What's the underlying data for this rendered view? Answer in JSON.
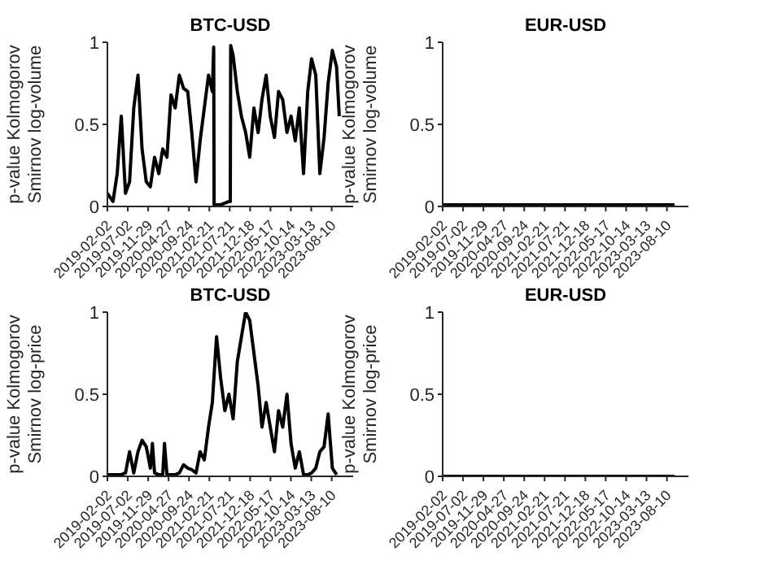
{
  "chart_data": [
    {
      "type": "line",
      "title": "BTC-USD",
      "ylabel": "p-value Kolmogorov\nSmirnov log-volume",
      "xlim": [
        "2019-02-02",
        "2024-01-15"
      ],
      "xticks": [
        "2019-02-02",
        "2019-07-02",
        "2019-11-29",
        "2020-04-27",
        "2020-09-24",
        "2021-02-21",
        "2021-07-21",
        "2021-12-18",
        "2022-05-17",
        "2022-10-14",
        "2023-03-13",
        "2023-08-10"
      ],
      "ylim": [
        0,
        1
      ],
      "yticks": [
        0,
        0.5,
        1
      ],
      "grid": false,
      "legend": false,
      "x": [
        "2019-02-02",
        "2019-03-15",
        "2019-04-15",
        "2019-05-15",
        "2019-06-15",
        "2019-07-15",
        "2019-08-15",
        "2019-09-15",
        "2019-10-15",
        "2019-11-15",
        "2019-12-15",
        "2020-01-15",
        "2020-02-15",
        "2020-03-15",
        "2020-04-15",
        "2020-05-15",
        "2020-06-15",
        "2020-07-15",
        "2020-08-15",
        "2020-09-15",
        "2020-10-15",
        "2020-11-15",
        "2020-12-15",
        "2021-01-15",
        "2021-02-15",
        "2021-03-15",
        "2021-03-25",
        "2021-03-28",
        "2021-04-15",
        "2021-05-15",
        "2021-06-15",
        "2021-07-15",
        "2021-07-25",
        "2021-07-28",
        "2021-08-15",
        "2021-09-15",
        "2021-10-15",
        "2021-11-15",
        "2021-12-15",
        "2022-01-15",
        "2022-02-15",
        "2022-03-15",
        "2022-04-15",
        "2022-05-15",
        "2022-06-15",
        "2022-07-15",
        "2022-08-15",
        "2022-09-15",
        "2022-10-15",
        "2022-11-15",
        "2022-12-15",
        "2023-01-15",
        "2023-02-15",
        "2023-03-15",
        "2023-04-15",
        "2023-05-15",
        "2023-06-15",
        "2023-07-15",
        "2023-08-15",
        "2023-09-15",
        "2023-10-05"
      ],
      "series": [
        {
          "color": "#000000",
          "values": [
            0.08,
            0.03,
            0.2,
            0.55,
            0.08,
            0.15,
            0.6,
            0.8,
            0.35,
            0.15,
            0.12,
            0.3,
            0.2,
            0.35,
            0.3,
            0.68,
            0.6,
            0.8,
            0.72,
            0.7,
            0.45,
            0.15,
            0.4,
            0.6,
            0.8,
            0.7,
            0.97,
            0.01,
            0.01,
            0.01,
            0.02,
            0.03,
            0.03,
            0.98,
            0.92,
            0.7,
            0.55,
            0.45,
            0.3,
            0.6,
            0.45,
            0.65,
            0.8,
            0.55,
            0.42,
            0.7,
            0.65,
            0.45,
            0.55,
            0.4,
            0.6,
            0.2,
            0.7,
            0.9,
            0.8,
            0.2,
            0.42,
            0.75,
            0.95,
            0.85,
            0.55
          ]
        }
      ]
    },
    {
      "type": "line",
      "title": "EUR-USD",
      "ylabel": "p-value Kolmogorov\nSmirnov log-volume",
      "xlim": [
        "2019-02-02",
        "2024-01-15"
      ],
      "xticks": [
        "2019-02-02",
        "2019-07-02",
        "2019-11-29",
        "2020-04-27",
        "2020-09-24",
        "2021-02-21",
        "2021-07-21",
        "2021-12-18",
        "2022-05-17",
        "2022-10-14",
        "2023-03-13",
        "2023-08-10"
      ],
      "ylim": [
        0,
        1
      ],
      "yticks": [
        0,
        0.5,
        1
      ],
      "grid": false,
      "legend": false,
      "x": [
        "2019-02-02",
        "2019-05-15",
        "2019-08-15",
        "2019-11-15",
        "2020-02-15",
        "2020-05-15",
        "2020-08-15",
        "2020-11-15",
        "2021-02-15",
        "2021-05-15",
        "2021-08-15",
        "2021-11-15",
        "2022-02-15",
        "2022-05-15",
        "2022-08-15",
        "2022-11-15",
        "2023-02-15",
        "2023-05-15",
        "2023-08-15",
        "2023-10-05"
      ],
      "series": [
        {
          "color": "#000000",
          "values": [
            0.01,
            0.01,
            0.01,
            0.01,
            0.01,
            0.01,
            0.01,
            0.01,
            0.01,
            0.01,
            0.01,
            0.01,
            0.01,
            0.01,
            0.01,
            0.01,
            0.01,
            0.01,
            0.01,
            0.01
          ]
        }
      ]
    },
    {
      "type": "line",
      "title": "BTC-USD",
      "ylabel": "p-value Kolmogorov\nSmirnov log-price",
      "xlim": [
        "2019-02-02",
        "2024-01-15"
      ],
      "xticks": [
        "2019-02-02",
        "2019-07-02",
        "2019-11-29",
        "2020-04-27",
        "2020-09-24",
        "2021-02-21",
        "2021-07-21",
        "2021-12-18",
        "2022-05-17",
        "2022-10-14",
        "2023-03-13",
        "2023-08-10"
      ],
      "ylim": [
        0,
        1
      ],
      "yticks": [
        0,
        0.5,
        1
      ],
      "grid": false,
      "legend": false,
      "x": [
        "2019-02-02",
        "2019-03-15",
        "2019-04-15",
        "2019-05-15",
        "2019-06-15",
        "2019-07-15",
        "2019-08-15",
        "2019-09-15",
        "2019-10-15",
        "2019-11-15",
        "2019-12-15",
        "2019-12-30",
        "2020-01-15",
        "2020-02-15",
        "2020-03-15",
        "2020-03-28",
        "2020-04-15",
        "2020-05-15",
        "2020-06-15",
        "2020-07-15",
        "2020-08-15",
        "2020-09-15",
        "2020-10-15",
        "2020-11-15",
        "2020-12-15",
        "2021-01-15",
        "2021-02-15",
        "2021-03-15",
        "2021-04-15",
        "2021-05-15",
        "2021-06-15",
        "2021-07-15",
        "2021-08-15",
        "2021-09-15",
        "2021-10-15",
        "2021-11-15",
        "2021-12-15",
        "2022-01-15",
        "2022-02-15",
        "2022-03-15",
        "2022-04-15",
        "2022-05-15",
        "2022-06-15",
        "2022-07-15",
        "2022-08-15",
        "2022-09-15",
        "2022-10-15",
        "2022-11-15",
        "2022-12-15",
        "2023-01-15",
        "2023-02-15",
        "2023-03-15",
        "2023-04-15",
        "2023-05-15",
        "2023-06-15",
        "2023-07-15",
        "2023-08-15",
        "2023-09-15"
      ],
      "series": [
        {
          "color": "#000000",
          "values": [
            0.01,
            0.01,
            0.01,
            0.01,
            0.02,
            0.15,
            0.02,
            0.15,
            0.22,
            0.18,
            0.05,
            0.2,
            0.02,
            0.01,
            0.01,
            0.2,
            0.01,
            0.01,
            0.01,
            0.02,
            0.07,
            0.05,
            0.04,
            0.02,
            0.15,
            0.1,
            0.3,
            0.45,
            0.85,
            0.6,
            0.4,
            0.5,
            0.35,
            0.7,
            0.85,
            1.0,
            0.95,
            0.75,
            0.55,
            0.3,
            0.45,
            0.3,
            0.15,
            0.4,
            0.3,
            0.5,
            0.2,
            0.05,
            0.15,
            0.01,
            0.01,
            0.02,
            0.05,
            0.15,
            0.18,
            0.38,
            0.05,
            0.01
          ]
        }
      ]
    },
    {
      "type": "line",
      "title": "EUR-USD",
      "ylabel": "p-value Kolmogorov\nSmirnov log-price",
      "xlim": [
        "2019-02-02",
        "2024-01-15"
      ],
      "xticks": [
        "2019-02-02",
        "2019-07-02",
        "2019-11-29",
        "2020-04-27",
        "2020-09-24",
        "2021-02-21",
        "2021-07-21",
        "2021-12-18",
        "2022-05-17",
        "2022-10-14",
        "2023-03-13",
        "2023-08-10"
      ],
      "ylim": [
        0,
        1
      ],
      "yticks": [
        0,
        0.5,
        1
      ],
      "grid": false,
      "legend": false,
      "x": [
        "2019-02-02",
        "2019-05-15",
        "2019-08-15",
        "2019-11-15",
        "2020-02-15",
        "2020-05-15",
        "2020-08-15",
        "2020-11-15",
        "2021-02-15",
        "2021-05-15",
        "2021-08-15",
        "2021-11-15",
        "2022-02-15",
        "2022-05-15",
        "2022-08-15",
        "2022-11-15",
        "2023-02-15",
        "2023-05-15",
        "2023-08-15",
        "2023-10-05"
      ],
      "series": [
        {
          "color": "#000000",
          "values": [
            0,
            0,
            0,
            0,
            0,
            0,
            0,
            0,
            0,
            0,
            0,
            0,
            0,
            0,
            0,
            0,
            0,
            0,
            0,
            0
          ]
        }
      ]
    }
  ]
}
